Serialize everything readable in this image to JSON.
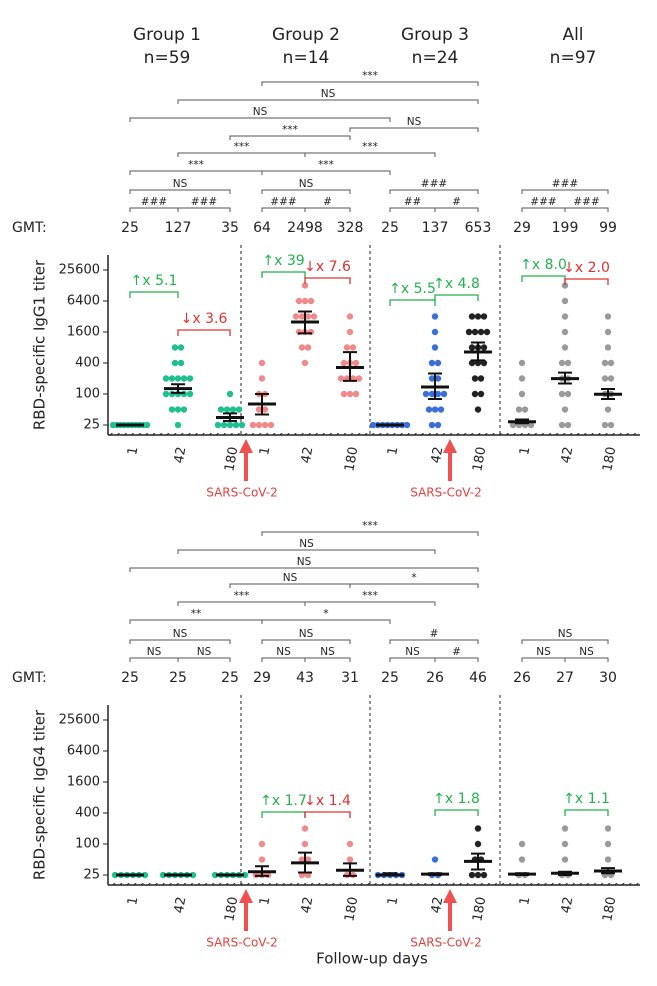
{
  "groups": [
    {
      "name": "Group 1",
      "n": "n=59"
    },
    {
      "name": "Group 2",
      "n": "n=14"
    },
    {
      "name": "Group 3",
      "n": "n=24"
    },
    {
      "name": "All",
      "n": "n=97"
    }
  ],
  "infection_label": "SARS-CoV-2",
  "chart_data": [
    {
      "type": "dot",
      "y_label": "RBD-specific IgG1 titer",
      "log_scale": true,
      "ylim": [
        16,
        50000
      ],
      "yticks": [
        25,
        100,
        400,
        1600,
        6400,
        25600
      ],
      "categories": [
        1,
        42,
        180,
        1,
        42,
        180,
        1,
        42,
        180,
        1,
        42,
        180
      ],
      "colors": [
        "#1fbf8f",
        "#1fbf8f",
        "#1fbf8f",
        "#f08a8a",
        "#f08a8a",
        "#f08a8a",
        "#3a6fd8",
        "#3a6fd8",
        "#222222",
        "#9a9a9a",
        "#9a9a9a",
        "#9a9a9a"
      ],
      "gmt_label": "GMT:",
      "gmt": [
        25,
        127,
        35,
        64,
        2498,
        328,
        25,
        137,
        653,
        29,
        199,
        99
      ],
      "ci_low": [
        25,
        105,
        30,
        40,
        1500,
        180,
        25,
        80,
        450,
        27,
        160,
        80
      ],
      "ci_high": [
        25,
        155,
        42,
        100,
        4000,
        650,
        25,
        250,
        1000,
        32,
        260,
        125
      ],
      "points": [
        [
          25,
          25,
          25,
          25,
          25,
          25,
          25,
          25,
          25,
          25
        ],
        [
          25,
          50,
          50,
          100,
          100,
          100,
          100,
          200,
          200,
          200,
          200,
          400,
          400,
          800,
          800,
          50,
          100,
          200
        ],
        [
          25,
          25,
          25,
          25,
          50,
          50,
          50,
          100,
          25,
          50
        ],
        [
          25,
          25,
          25,
          50,
          50,
          100,
          100,
          200,
          400,
          25
        ],
        [
          400,
          800,
          1600,
          1600,
          3200,
          3200,
          3200,
          6400,
          6400,
          12800,
          1600,
          800,
          3200,
          6400
        ],
        [
          100,
          100,
          200,
          200,
          200,
          400,
          400,
          800,
          1600,
          3200,
          100,
          200,
          400,
          800
        ],
        [
          25,
          25,
          25,
          25,
          25,
          25,
          25,
          25
        ],
        [
          25,
          25,
          50,
          50,
          100,
          100,
          100,
          200,
          200,
          400,
          400,
          800,
          1600,
          3200,
          50,
          100
        ],
        [
          50,
          100,
          200,
          400,
          400,
          800,
          800,
          1600,
          1600,
          1600,
          3200,
          3200,
          3200,
          800,
          400,
          100,
          200,
          1600
        ],
        [
          25,
          25,
          25,
          25,
          50,
          50,
          100,
          200,
          400
        ],
        [
          25,
          50,
          100,
          200,
          400,
          800,
          1600,
          3200,
          6400,
          12800,
          25,
          100,
          200,
          400
        ],
        [
          25,
          50,
          100,
          200,
          400,
          800,
          1600,
          3200,
          25,
          100,
          200,
          400
        ]
      ],
      "comparisons": [
        "***",
        "NS",
        "NS",
        "NS",
        "***",
        "***",
        "***",
        "***",
        "***",
        "NS",
        "###",
        "###",
        "NS",
        "###",
        "#",
        "###",
        "##",
        "#",
        "###",
        "###",
        "###"
      ],
      "fold_changes": [
        "↑x 5.1",
        "↓x 3.6",
        "↑x 39",
        "↓x 7.6",
        "↑x 5.5",
        "↑x 4.8",
        "↑x 8.0",
        "↓x 2.0"
      ]
    },
    {
      "type": "dot",
      "y_label": "RBD-specific IgG4 titer",
      "log_scale": true,
      "ylim": [
        16,
        50000
      ],
      "yticks": [
        25,
        100,
        400,
        1600,
        6400,
        25600
      ],
      "categories": [
        1,
        42,
        180,
        1,
        42,
        180,
        1,
        42,
        180,
        1,
        42,
        180
      ],
      "colors": [
        "#1fbf8f",
        "#1fbf8f",
        "#1fbf8f",
        "#f08a8a",
        "#f08a8a",
        "#f08a8a",
        "#3a6fd8",
        "#3a6fd8",
        "#222222",
        "#9a9a9a",
        "#9a9a9a",
        "#9a9a9a"
      ],
      "gmt_label": "GMT:",
      "gmt": [
        25,
        25,
        25,
        29,
        43,
        31,
        25,
        26,
        46,
        26,
        27,
        30
      ],
      "ci_low": [
        25,
        25,
        25,
        24,
        28,
        24,
        25,
        25,
        32,
        25,
        25,
        27
      ],
      "ci_high": [
        25,
        25,
        25,
        37,
        68,
        42,
        27,
        27,
        65,
        27,
        29,
        34
      ],
      "points": [
        [
          25,
          25,
          25,
          25,
          25,
          25
        ],
        [
          25,
          25,
          25,
          25,
          25,
          25
        ],
        [
          25,
          25,
          25,
          25,
          25,
          25
        ],
        [
          25,
          25,
          50,
          100,
          25
        ],
        [
          25,
          50,
          100,
          200,
          25,
          50
        ],
        [
          25,
          50,
          100,
          25
        ],
        [
          25,
          25,
          25,
          25,
          25
        ],
        [
          25,
          25,
          50
        ],
        [
          25,
          25,
          50,
          100,
          200,
          25,
          50
        ],
        [
          25,
          50,
          100,
          25
        ],
        [
          25,
          50,
          100,
          200,
          25
        ],
        [
          25,
          50,
          100,
          200,
          25
        ]
      ],
      "comparisons": [
        "***",
        "NS",
        "NS",
        "NS",
        "*",
        "***",
        "***",
        "**",
        "*",
        "NS",
        "NS",
        "NS",
        "NS",
        "NS",
        "NS",
        "#",
        "NS",
        "#",
        "NS",
        "NS",
        "NS"
      ],
      "fold_changes": [
        "↑x 1.7",
        "↓x 1.4",
        "↑x 1.8",
        "↑x 1.1"
      ],
      "x_label": "Follow-up days"
    }
  ]
}
